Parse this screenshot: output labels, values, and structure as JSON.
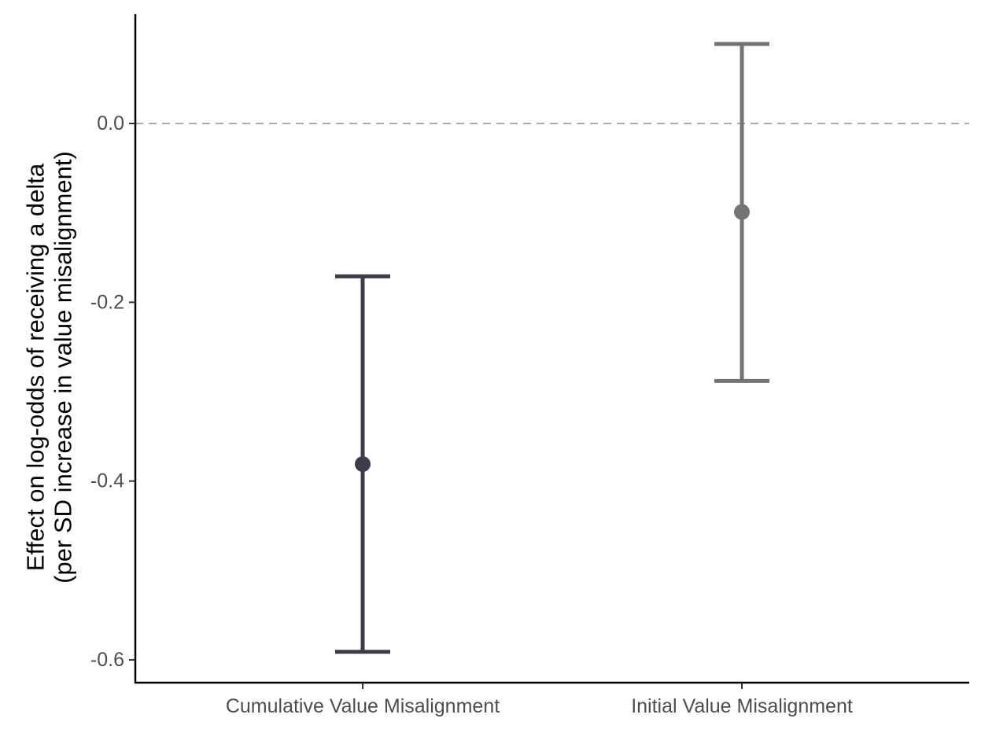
{
  "chart_data": {
    "type": "errorbar",
    "categories": [
      "Cumulative Value Misalignment",
      "Initial Value Misalignment"
    ],
    "series": [
      {
        "estimates": [
          -0.381,
          -0.099
        ],
        "lower": [
          -0.591,
          -0.288
        ],
        "upper": [
          -0.171,
          0.089
        ],
        "colors": [
          "#3d3c48",
          "#737373"
        ]
      }
    ],
    "title": "",
    "xlabel": "",
    "ylabel_lines": [
      "Effect on log-odds of receiving a delta",
      "(per SD increase in value misalignment)"
    ],
    "ylim": [
      -0.62,
      0.12
    ],
    "yticks": [
      0.0,
      -0.2,
      -0.4,
      -0.6
    ],
    "ytick_labels": [
      "0.0",
      "-0.2",
      "-0.4",
      "-0.6"
    ],
    "reference_line": {
      "y": 0.0,
      "style": "dashed",
      "color": "#aaaaaa"
    },
    "axis_color": "#000000",
    "grid": false,
    "legend": "none"
  }
}
